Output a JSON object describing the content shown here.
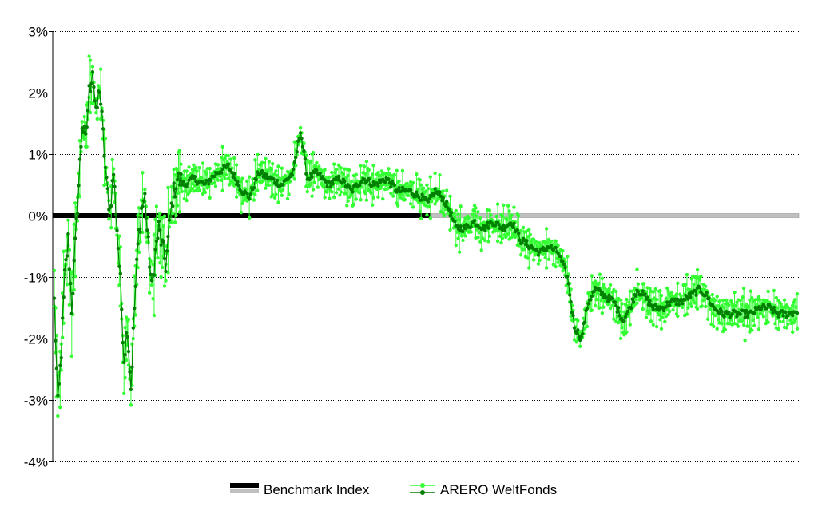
{
  "chart_data": {
    "type": "line",
    "title": "",
    "xlabel": "",
    "ylabel": "",
    "ylim": [
      -4,
      3
    ],
    "yticks": [
      "3%",
      "2%",
      "1%",
      "0%",
      "-1%",
      "-2%",
      "-3%",
      "-4%"
    ],
    "ytick_values": [
      3,
      2,
      1,
      0,
      -1,
      -2,
      -3,
      -4
    ],
    "grid": true,
    "legend_position": "bottom",
    "series": [
      {
        "name": "Benchmark Index",
        "color": "#000000",
        "shadow_color": "#c0c0c0",
        "values": [
          0,
          0
        ]
      },
      {
        "name": "ARERO WeltFonds",
        "color": "#008000",
        "highlow_color": "#33ff33",
        "anchors": [
          [
            0,
            -1.4
          ],
          [
            3,
            -3.1
          ],
          [
            6,
            -2.2
          ],
          [
            9,
            -1.0
          ],
          [
            12,
            -0.4
          ],
          [
            15,
            -1.5
          ],
          [
            18,
            -0.5
          ],
          [
            21,
            0.5
          ],
          [
            24,
            1.5
          ],
          [
            27,
            1.2
          ],
          [
            30,
            2.0
          ],
          [
            33,
            2.4
          ],
          [
            36,
            1.6
          ],
          [
            39,
            2.1
          ],
          [
            42,
            1.3
          ],
          [
            45,
            0.5
          ],
          [
            48,
            0.1
          ],
          [
            51,
            0.7
          ],
          [
            54,
            -0.2
          ],
          [
            57,
            -1.1
          ],
          [
            60,
            -2.3
          ],
          [
            63,
            -1.8
          ],
          [
            66,
            -2.8
          ],
          [
            69,
            -1.5
          ],
          [
            72,
            -0.5
          ],
          [
            75,
            0.1
          ],
          [
            78,
            0.3
          ],
          [
            81,
            -0.5
          ],
          [
            84,
            -1.2
          ],
          [
            87,
            -0.6
          ],
          [
            90,
            -0.2
          ],
          [
            93,
            -0.5
          ],
          [
            96,
            -0.8
          ],
          [
            99,
            -0.2
          ],
          [
            102,
            0.3
          ],
          [
            106,
            0.6
          ],
          [
            112,
            0.5
          ],
          [
            120,
            0.6
          ],
          [
            130,
            0.5
          ],
          [
            140,
            0.7
          ],
          [
            150,
            0.8
          ],
          [
            156,
            0.6
          ],
          [
            162,
            0.4
          ],
          [
            168,
            0.3
          ],
          [
            176,
            0.7
          ],
          [
            186,
            0.6
          ],
          [
            196,
            0.5
          ],
          [
            206,
            0.7
          ],
          [
            212,
            1.4
          ],
          [
            218,
            0.6
          ],
          [
            226,
            0.7
          ],
          [
            236,
            0.5
          ],
          [
            246,
            0.6
          ],
          [
            256,
            0.4
          ],
          [
            266,
            0.6
          ],
          [
            276,
            0.5
          ],
          [
            286,
            0.6
          ],
          [
            296,
            0.4
          ],
          [
            306,
            0.4
          ],
          [
            316,
            0.3
          ],
          [
            322,
            0.2
          ],
          [
            328,
            0.4
          ],
          [
            334,
            0.3
          ],
          [
            340,
            0.1
          ],
          [
            346,
            -0.2
          ],
          [
            354,
            -0.2
          ],
          [
            362,
            -0.1
          ],
          [
            370,
            -0.2
          ],
          [
            378,
            -0.1
          ],
          [
            386,
            -0.2
          ],
          [
            394,
            -0.1
          ],
          [
            402,
            -0.4
          ],
          [
            410,
            -0.5
          ],
          [
            418,
            -0.6
          ],
          [
            426,
            -0.5
          ],
          [
            434,
            -0.6
          ],
          [
            442,
            -1.0
          ],
          [
            448,
            -1.8
          ],
          [
            454,
            -2.0
          ],
          [
            460,
            -1.4
          ],
          [
            466,
            -1.2
          ],
          [
            474,
            -1.3
          ],
          [
            482,
            -1.4
          ],
          [
            490,
            -1.7
          ],
          [
            496,
            -1.5
          ],
          [
            502,
            -1.2
          ],
          [
            508,
            -1.3
          ],
          [
            516,
            -1.5
          ],
          [
            524,
            -1.5
          ],
          [
            532,
            -1.4
          ],
          [
            540,
            -1.4
          ],
          [
            548,
            -1.3
          ],
          [
            556,
            -1.2
          ],
          [
            562,
            -1.3
          ],
          [
            568,
            -1.5
          ],
          [
            576,
            -1.6
          ],
          [
            584,
            -1.6
          ],
          [
            592,
            -1.6
          ],
          [
            600,
            -1.6
          ],
          [
            608,
            -1.5
          ],
          [
            616,
            -1.5
          ],
          [
            624,
            -1.6
          ],
          [
            632,
            -1.6
          ],
          [
            640,
            -1.55
          ]
        ]
      }
    ]
  }
}
